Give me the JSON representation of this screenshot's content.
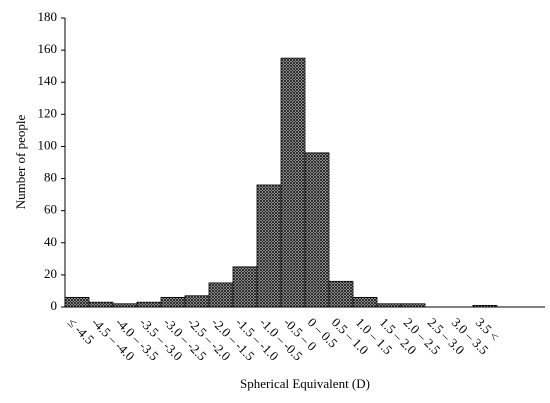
{
  "chart_data": {
    "type": "bar",
    "x_label": "Spherical Equivalent (D)",
    "y_label": "Number of people",
    "categories": [
      "≤ -4.5",
      "-4.5 – -4.0",
      "-4.0 – -3.5",
      "-3.5 – -3.0",
      "-3.0 – -2.5",
      "-2.5 – -2.0",
      "-2.0 – -1.5",
      "-1.5 – -1.0",
      "-1.0 – -0.5",
      "-0.5 – 0",
      "0 – 0.5",
      "0.5 – 1.0",
      "1.0 – 1.5",
      "1.5 – 2.0",
      "2.0 – 2.5",
      "2.5 – 3.0",
      "3.0 – 3.5",
      "3.5 <"
    ],
    "values": [
      6,
      3,
      2,
      3,
      6,
      7,
      15,
      25,
      76,
      155,
      96,
      16,
      6,
      2,
      2,
      0,
      0,
      1
    ],
    "color": "#3a3a3a",
    "ylim": [
      0,
      180
    ],
    "yticks": [
      0,
      20,
      40,
      60,
      80,
      100,
      120,
      140,
      160,
      180
    ]
  }
}
